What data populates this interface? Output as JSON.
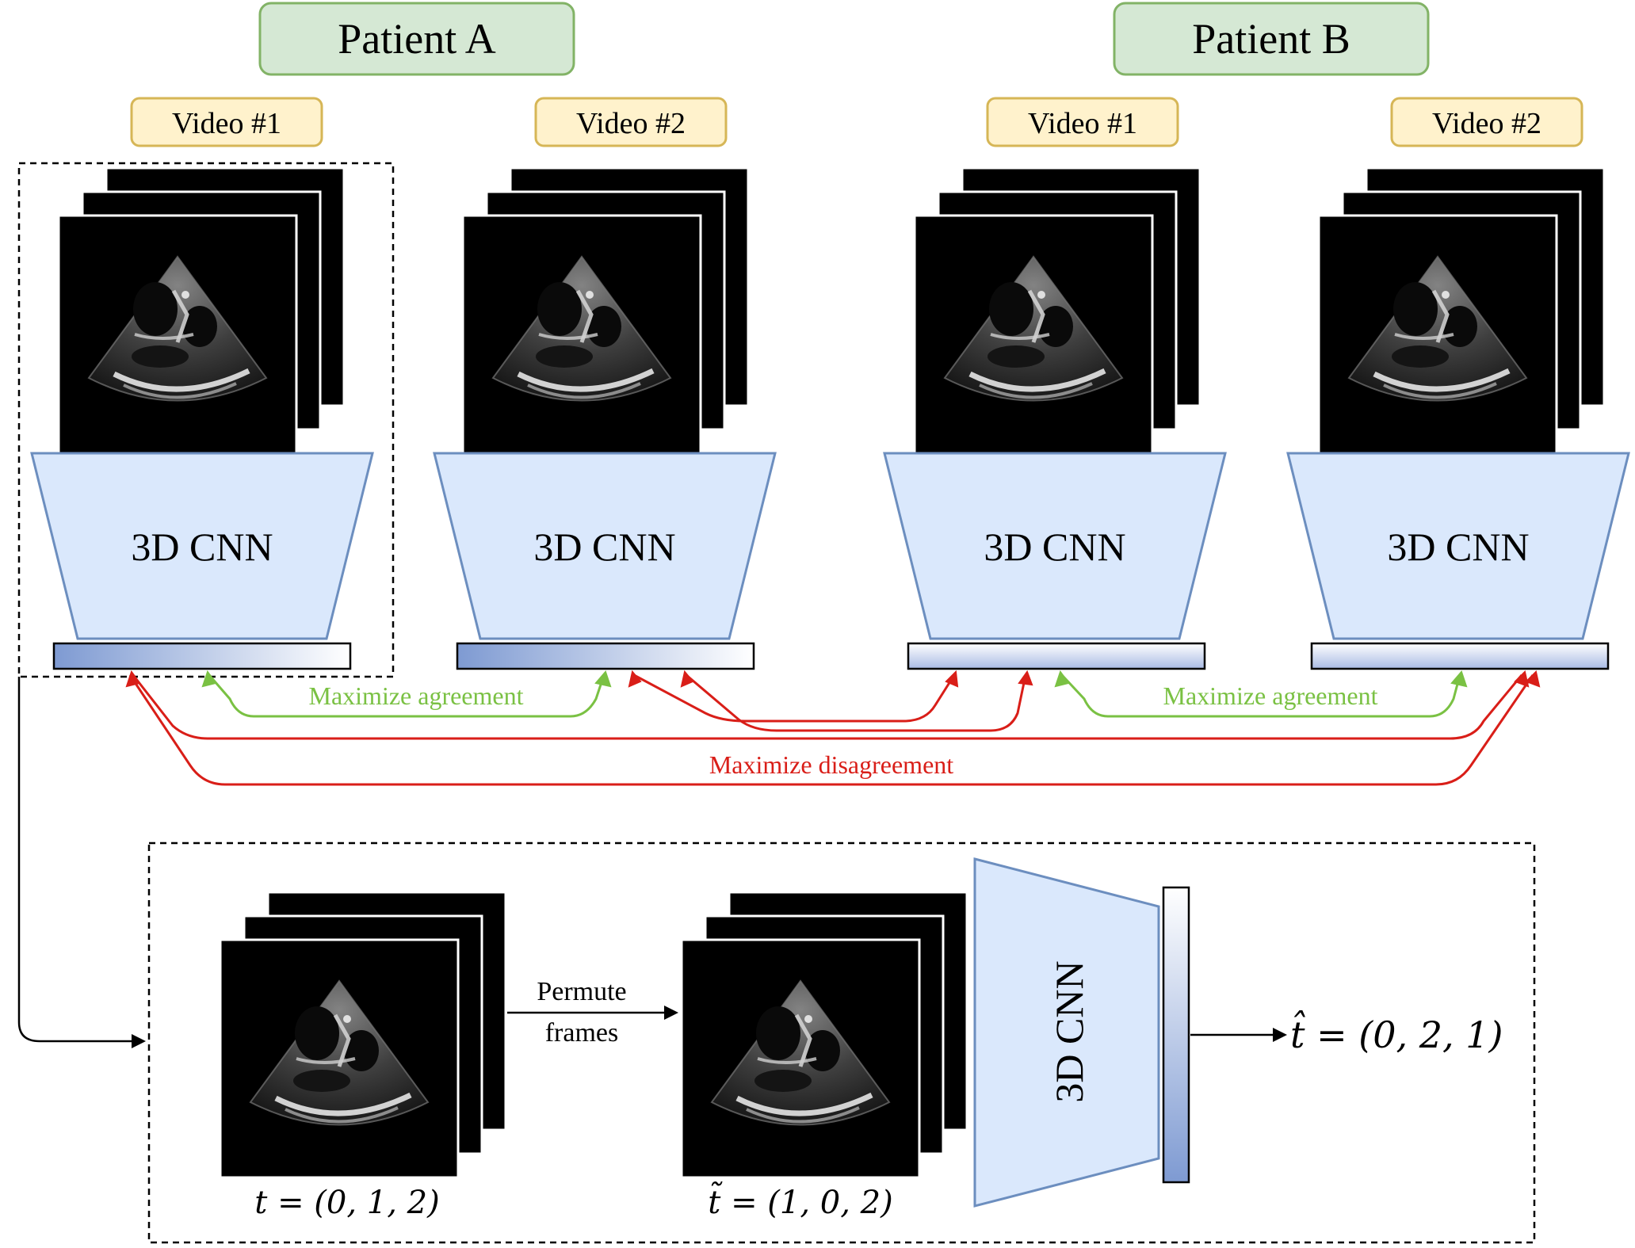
{
  "patients": [
    {
      "label": "Patient A",
      "videos": [
        {
          "label": "Video #1",
          "encoder": "3D CNN"
        },
        {
          "label": "Video #2",
          "encoder": "3D CNN"
        }
      ]
    },
    {
      "label": "Patient B",
      "videos": [
        {
          "label": "Video #1",
          "encoder": "3D CNN"
        },
        {
          "label": "Video #2",
          "encoder": "3D CNN"
        }
      ]
    }
  ],
  "relations": {
    "agreement_a": "Maximize agreement",
    "agreement_b": "Maximize agreement",
    "disagreement": "Maximize disagreement"
  },
  "pretext": {
    "permute_line1": "Permute",
    "permute_line2": "frames",
    "encoder": "3D CNN",
    "t_original": "t = (0, 1, 2)",
    "t_permuted": "t̃ = (1, 0, 2)",
    "t_predicted": "t̂ = (0, 2, 1)"
  },
  "colors": {
    "patient_fill": "#d5e8d4",
    "patient_stroke": "#82b366",
    "video_fill": "#fff2cc",
    "video_stroke": "#d6b656",
    "cnn_fill": "#dae8fc",
    "cnn_stroke": "#6c8ebf",
    "agree": "#7ac143",
    "disagree": "#d91e18"
  }
}
